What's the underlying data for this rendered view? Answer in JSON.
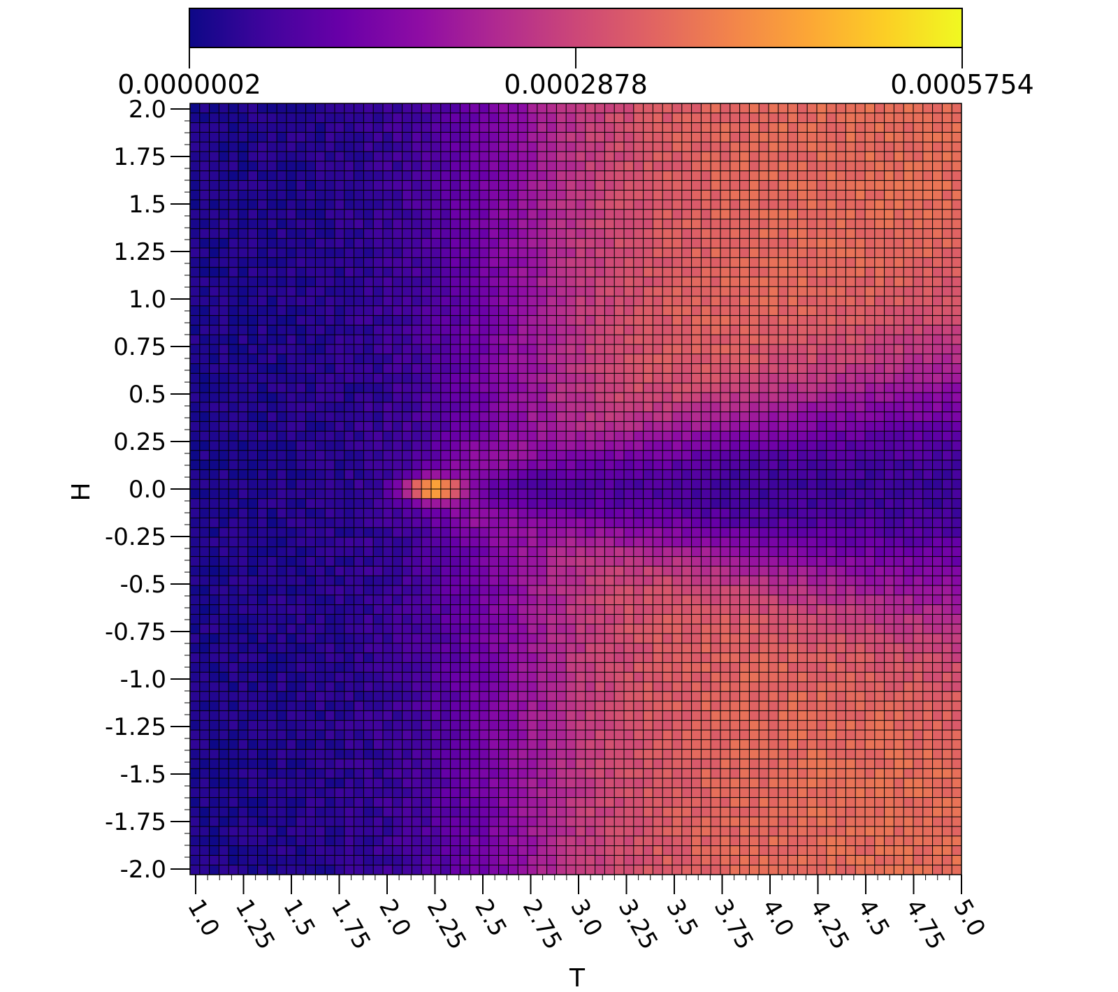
{
  "chart_data": {
    "type": "heatmap",
    "title": "",
    "xlabel": "T",
    "ylabel": "H",
    "xlim": [
      1.0,
      5.0
    ],
    "ylim": [
      -2.0,
      2.0
    ],
    "grid": true,
    "colormap": "plasma",
    "x_ticks": [
      "1.0",
      "1.25",
      "1.5",
      "1.75",
      "2.0",
      "2.25",
      "2.5",
      "2.75",
      "3.0",
      "3.25",
      "3.5",
      "3.75",
      "4.0",
      "4.25",
      "4.5",
      "4.75",
      "5.0"
    ],
    "y_ticks": [
      "2.0",
      "1.75",
      "1.5",
      "1.25",
      "1.0",
      "0.75",
      "0.5",
      "0.25",
      "0.0",
      "-0.25",
      "-0.5",
      "-0.75",
      "-1.0",
      "-1.25",
      "-1.5",
      "-1.75",
      "-2.0"
    ],
    "colorbar": {
      "ticks": [
        "0.0000002",
        "0.0002878",
        "0.0005754"
      ],
      "min": 2e-07,
      "max": 0.0005754,
      "placement": "top"
    },
    "grid_shape": [
      80,
      80
    ],
    "peak": {
      "T": 2.27,
      "H": 0.0,
      "value": 0.0005754
    },
    "description_of_field": "Low values at T<2, peak near T=2.27, H=0; for T>2.5 a dark low-value wedge widens around H=0 while |H|>0.5 rises to ~0.0003-0.0004."
  }
}
